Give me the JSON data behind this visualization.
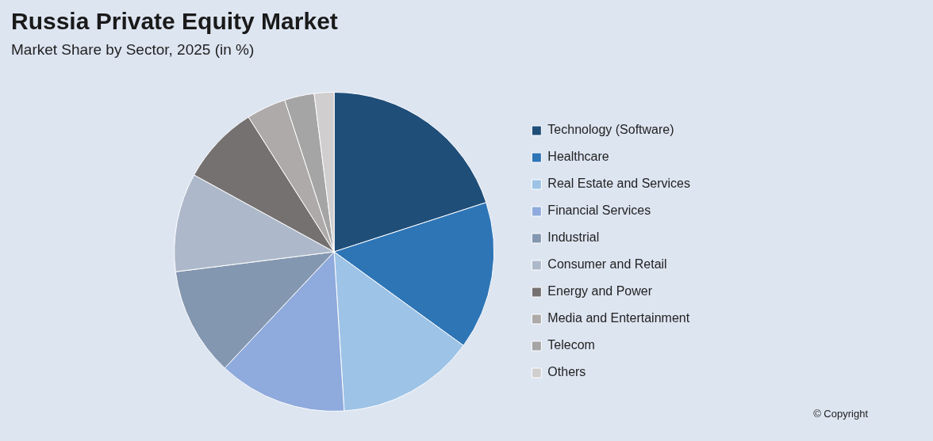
{
  "chart_data": {
    "type": "pie",
    "title": "Russia Private Equity Market",
    "subtitle": "Market Share by Sector, 2025 (in %)",
    "categories": [
      "Technology (Software)",
      "Healthcare",
      "Real Estate and Services",
      "Financial Services",
      "Industrial",
      "Consumer and Retail",
      "Energy and Power",
      "Media and Entertainment",
      "Telecom",
      "Others"
    ],
    "values": [
      20,
      15,
      14,
      13,
      11,
      10,
      8,
      4,
      3,
      2
    ],
    "colors": [
      "#1f4e79",
      "#2e75b6",
      "#9dc3e6",
      "#8faadc",
      "#8497b0",
      "#adb9ca",
      "#767171",
      "#aeaaaa",
      "#a5a5a5",
      "#d0cece"
    ],
    "legend": "right",
    "annotations": [
      "© Copyright"
    ]
  }
}
